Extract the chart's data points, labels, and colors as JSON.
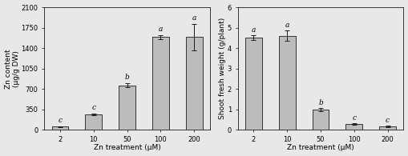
{
  "categories": [
    "2",
    "10",
    "50",
    "100",
    "200"
  ],
  "zn_content_values": [
    55,
    265,
    760,
    1590,
    1590
  ],
  "zn_content_errors": [
    8,
    12,
    35,
    38,
    230
  ],
  "zn_content_letters": [
    "c",
    "c",
    "b",
    "a",
    "a"
  ],
  "zn_content_ylabel": "Zn content\n(μg/g DW)",
  "zn_content_xlabel": "Zn treatment (μM)",
  "zn_content_ylim": [
    0,
    2100
  ],
  "zn_content_yticks": [
    0,
    350,
    700,
    1050,
    1400,
    1750,
    2100
  ],
  "fw_values": [
    4.5,
    4.6,
    1.0,
    0.28,
    0.18
  ],
  "fw_errors": [
    0.12,
    0.25,
    0.07,
    0.04,
    0.03
  ],
  "fw_letters": [
    "a",
    "a",
    "b",
    "c",
    "c"
  ],
  "fw_ylabel": "Shoot fresh weight (g/plant)",
  "fw_xlabel": "Zn treatment (μM)",
  "fw_ylim": [
    0,
    6
  ],
  "fw_yticks": [
    0,
    1,
    2,
    3,
    4,
    5,
    6
  ],
  "bar_color": "#bcbcbc",
  "bar_edgecolor": "#1a1a1a",
  "bar_linewidth": 0.6,
  "bar_width": 0.5,
  "error_capsize": 2,
  "error_color": "#1a1a1a",
  "error_linewidth": 0.7,
  "letter_fontsize": 6.5,
  "label_fontsize": 6.5,
  "tick_fontsize": 6,
  "figure_facecolor": "#e8e8e8",
  "axes_facecolor": "#e8e8e8"
}
